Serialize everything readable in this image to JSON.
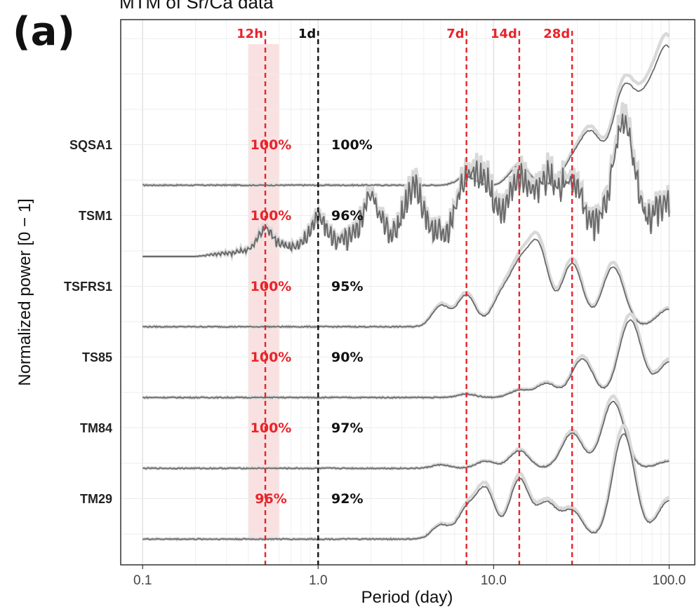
{
  "panel_label": "(a)",
  "colors": {
    "accent_red": "#e8242b",
    "marker_black": "#111111",
    "trace": "#6a6a6a",
    "trace_bg": "#d9d9d9",
    "band": "#f9dcdc"
  },
  "chart_data": {
    "type": "line",
    "title": "MTM of Sr/Ca data",
    "xlabel": "Period (day)",
    "ylabel": "Normalized power [0 − 1]",
    "x_scale": "log",
    "xlim": [
      0.075,
      140
    ],
    "x_ticks": [
      0.1,
      1.0,
      10.0,
      100.0
    ],
    "x_tick_labels": [
      "0.1",
      "1.0",
      "10.0",
      "100.0"
    ],
    "grid": true,
    "shaded_band": {
      "from": 0.4,
      "to": 0.6
    },
    "markers": [
      {
        "label": "12h",
        "period": 0.5,
        "color": "#e8242b"
      },
      {
        "label": "1d",
        "period": 1.0,
        "color": "#111111"
      },
      {
        "label": "7d",
        "period": 7,
        "color": "#e8242b"
      },
      {
        "label": "14d",
        "period": 14,
        "color": "#e8242b"
      },
      {
        "label": "28d",
        "period": 28,
        "color": "#e8242b"
      }
    ],
    "series": [
      {
        "name": "SQSA1",
        "pct_12h": "100%",
        "pct_1d": "100%",
        "peaks": [
          [
            7,
            0.12
          ],
          [
            14,
            0.28
          ],
          [
            28,
            0.3
          ],
          [
            36,
            0.7
          ],
          [
            55,
            1.3
          ],
          [
            75,
            1.0
          ],
          [
            100,
            1.8
          ]
        ]
      },
      {
        "name": "TSM1",
        "pct_12h": "100%",
        "pct_1d": "96%",
        "peaks": [
          [
            0.5,
            0.3
          ],
          [
            1.0,
            0.35
          ],
          [
            2.0,
            0.6
          ],
          [
            3.5,
            0.7
          ],
          [
            7,
            0.75
          ],
          [
            9,
            0.65
          ],
          [
            14,
            0.78
          ],
          [
            20,
            0.75
          ],
          [
            28,
            0.72
          ],
          [
            55,
            1.55
          ],
          [
            100,
            0.5
          ]
        ]
      },
      {
        "name": "TSFRS1",
        "pct_12h": "100%",
        "pct_1d": "95%",
        "peaks": [
          [
            5,
            0.3
          ],
          [
            7,
            0.45
          ],
          [
            11,
            0.4
          ],
          [
            14,
            0.75
          ],
          [
            18,
            1.1
          ],
          [
            28,
            0.9
          ],
          [
            48,
            0.85
          ],
          [
            100,
            0.25
          ]
        ]
      },
      {
        "name": "TS85",
        "pct_12h": "100%",
        "pct_1d": "90%",
        "peaks": [
          [
            7,
            0.05
          ],
          [
            14,
            0.1
          ],
          [
            20,
            0.2
          ],
          [
            32,
            0.55
          ],
          [
            60,
            1.1
          ],
          [
            100,
            0.5
          ]
        ]
      },
      {
        "name": "TM84",
        "pct_12h": "100%",
        "pct_1d": "97%",
        "peaks": [
          [
            5,
            0.05
          ],
          [
            9,
            0.1
          ],
          [
            14,
            0.25
          ],
          [
            28,
            0.5
          ],
          [
            48,
            0.95
          ],
          [
            100,
            0.1
          ]
        ]
      },
      {
        "name": "TM29",
        "pct_12h": "96%",
        "pct_1d": "92%",
        "peaks": [
          [
            5,
            0.2
          ],
          [
            7,
            0.4
          ],
          [
            9,
            0.7
          ],
          [
            14,
            0.85
          ],
          [
            20,
            0.5
          ],
          [
            28,
            0.4
          ],
          [
            55,
            1.5
          ],
          [
            100,
            0.55
          ]
        ]
      }
    ]
  }
}
